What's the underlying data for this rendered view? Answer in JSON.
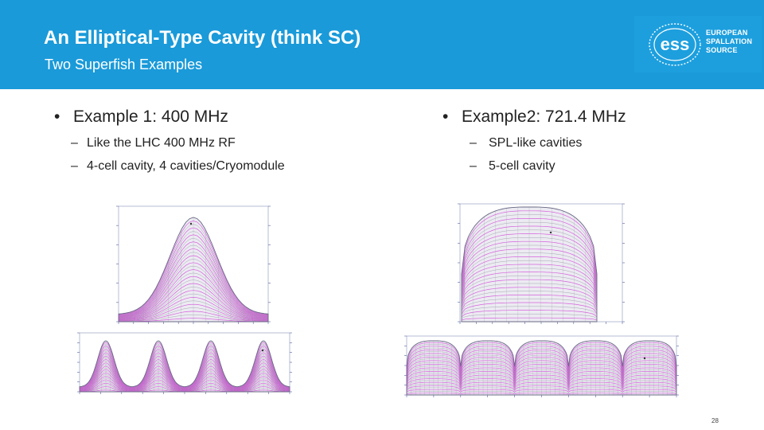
{
  "header": {
    "title": "An Elliptical-Type Cavity (think SC)",
    "subtitle": "Two Superfish Examples"
  },
  "logo": {
    "mark": "ess",
    "lines": [
      "EUROPEAN",
      "SPALLATION",
      "SOURCE"
    ]
  },
  "left": {
    "bullet": "Example 1: 400 MHz",
    "subs": [
      "Like the LHC 400 MHz RF",
      "4-cell cavity, 4 cavities/Cryomodule"
    ],
    "cells": 4
  },
  "right": {
    "bullet": "Example2: 721.4 MHz",
    "subs": [
      "SPL-like cavities",
      "5-cell cavity"
    ],
    "cells": 5
  },
  "symbols": {
    "bullet": "•",
    "dash": "–"
  },
  "page_number": "28",
  "colors": {
    "header": "#1a9ad9",
    "field_lines": "#d24ad8",
    "mesh": "#9a9aa8"
  }
}
